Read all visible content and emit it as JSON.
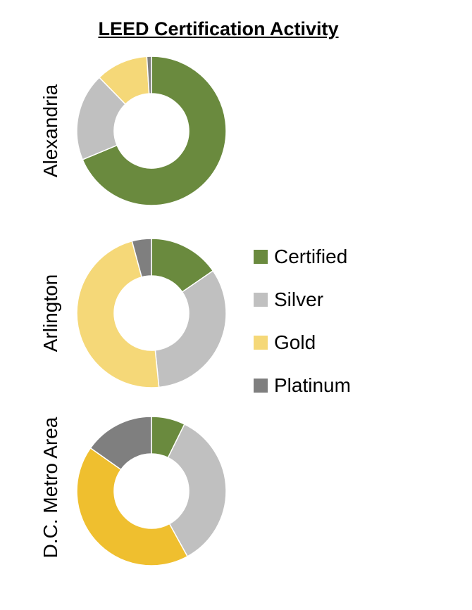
{
  "chart_data": {
    "type": "donut",
    "title": "LEED Certification Activity",
    "categories": [
      "Certified",
      "Silver",
      "Gold",
      "Platinum"
    ],
    "colors": {
      "Certified": "#6a8a3e",
      "Silver": "#c0c0c0",
      "Gold": "#f5d878",
      "Platinum": "#7f7f7f"
    },
    "legend_position": "right",
    "series": [
      {
        "name": "Alexandria",
        "values": [
          68.7,
          19.0,
          11.3,
          1.0
        ],
        "colors": [
          "#6a8a3e",
          "#c0c0c0",
          "#f5d878",
          "#7f7f7f"
        ]
      },
      {
        "name": "Arlington",
        "values": [
          15.4,
          33.0,
          47.4,
          4.2
        ],
        "colors": [
          "#6a8a3e",
          "#c0c0c0",
          "#f5d878",
          "#7f7f7f"
        ]
      },
      {
        "name": "D.C. Metro Area",
        "values": [
          7.3,
          34.7,
          42.8,
          15.2
        ],
        "colors": [
          "#6a8a3e",
          "#c0c0c0",
          "#efbf2f",
          "#7f7f7f"
        ]
      }
    ]
  }
}
